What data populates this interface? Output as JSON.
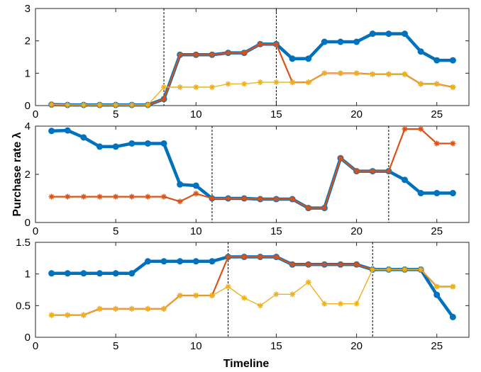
{
  "chart_data": {
    "type": "line",
    "ylabel": "Purchase rate λ",
    "xlabel": "Timeline",
    "panels": [
      {
        "xlim": [
          0,
          27
        ],
        "ylim": [
          0,
          3
        ],
        "xticks": [
          0,
          5,
          10,
          15,
          20,
          25
        ],
        "yticks": [
          0,
          1,
          2,
          3
        ],
        "ytick_labels": [
          "0",
          "1",
          "2",
          "3"
        ],
        "vlines": [
          8,
          15
        ],
        "series": [
          {
            "color": "#0072BD",
            "marker": "circle",
            "x": [
              1,
              2,
              3,
              4,
              5,
              6,
              7,
              8,
              9,
              10,
              11,
              12,
              13,
              14,
              15,
              16,
              17,
              18,
              19,
              20,
              21,
              22,
              23,
              24,
              25,
              26
            ],
            "y": [
              0.03,
              0.02,
              0.02,
              0.02,
              0.02,
              0.02,
              0.02,
              0.2,
              1.57,
              1.57,
              1.57,
              1.63,
              1.63,
              1.9,
              1.9,
              1.45,
              1.45,
              1.97,
              1.97,
              1.97,
              2.22,
              2.22,
              2.22,
              1.67,
              1.4,
              1.4
            ]
          },
          {
            "color": "#D95319",
            "marker": "asterisk",
            "x": [
              1,
              2,
              3,
              4,
              5,
              6,
              7,
              8,
              9,
              10,
              11,
              12,
              13,
              14,
              15,
              16,
              17,
              18,
              19,
              20,
              21,
              22,
              23,
              24,
              25,
              26
            ],
            "y": [
              0.03,
              0.02,
              0.02,
              0.02,
              0.02,
              0.02,
              0.02,
              0.2,
              1.57,
              1.57,
              1.57,
              1.63,
              1.63,
              1.9,
              1.9,
              0.72,
              0.72,
              1.0,
              1.0,
              1.0,
              0.97,
              0.97,
              0.97,
              0.67,
              0.67,
              0.57
            ]
          },
          {
            "color": "#EDB120",
            "marker": "asterisk",
            "x": [
              1,
              2,
              3,
              4,
              5,
              6,
              7,
              8,
              9,
              10,
              11,
              12,
              13,
              14,
              15,
              16,
              17,
              18,
              19,
              20,
              21,
              22,
              23,
              24,
              25,
              26
            ],
            "y": [
              0.03,
              0.02,
              0.02,
              0.02,
              0.02,
              0.02,
              0.02,
              0.57,
              0.57,
              0.57,
              0.57,
              0.67,
              0.67,
              0.72,
              0.72,
              0.72,
              0.72,
              1.0,
              1.0,
              1.0,
              0.97,
              0.97,
              0.97,
              0.67,
              0.67,
              0.57
            ]
          }
        ]
      },
      {
        "xlim": [
          0,
          27
        ],
        "ylim": [
          0,
          4
        ],
        "xticks": [
          0,
          5,
          10,
          15,
          20,
          25
        ],
        "yticks": [
          0,
          2,
          4
        ],
        "ytick_labels": [
          "0",
          "2",
          "4"
        ],
        "vlines": [
          11,
          22
        ],
        "series": [
          {
            "color": "#0072BD",
            "marker": "circle",
            "x": [
              1,
              2,
              3,
              4,
              5,
              6,
              7,
              8,
              9,
              10,
              11,
              12,
              13,
              14,
              15,
              16,
              17,
              18,
              19,
              20,
              21,
              22,
              23,
              24,
              25,
              26
            ],
            "y": [
              3.8,
              3.82,
              3.53,
              3.15,
              3.15,
              3.28,
              3.28,
              3.28,
              1.58,
              1.53,
              1.0,
              1.0,
              1.0,
              0.97,
              0.97,
              0.97,
              0.6,
              0.6,
              2.67,
              2.13,
              2.13,
              2.13,
              1.77,
              1.22,
              1.22,
              1.22
            ]
          },
          {
            "color": "#D95319",
            "marker": "asterisk",
            "x": [
              1,
              2,
              3,
              4,
              5,
              6,
              7,
              8,
              9,
              10,
              11,
              12,
              13,
              14,
              15,
              16,
              17,
              18,
              19,
              20,
              21,
              22,
              23,
              24,
              25,
              26
            ],
            "y": [
              1.07,
              1.07,
              1.07,
              1.07,
              1.07,
              1.07,
              1.07,
              1.07,
              0.87,
              1.2,
              1.0,
              1.0,
              1.0,
              0.97,
              0.97,
              0.97,
              0.6,
              0.6,
              2.67,
              2.13,
              2.13,
              2.13,
              3.88,
              3.88,
              3.28,
              3.28
            ]
          },
          {
            "color": "#EDB120",
            "marker": "asterisk",
            "x": [],
            "y": []
          }
        ]
      },
      {
        "xlim": [
          0,
          27
        ],
        "ylim": [
          0,
          1.5
        ],
        "xticks": [
          0,
          5,
          10,
          15,
          20,
          25
        ],
        "yticks": [
          0,
          0.5,
          1,
          1.5
        ],
        "ytick_labels": [
          "0",
          "0.5",
          "1",
          "1.5"
        ],
        "vlines": [
          12,
          21
        ],
        "series": [
          {
            "color": "#0072BD",
            "marker": "circle",
            "x": [
              1,
              2,
              3,
              4,
              5,
              6,
              7,
              8,
              9,
              10,
              11,
              12,
              13,
              14,
              15,
              16,
              17,
              18,
              19,
              20,
              21,
              22,
              23,
              24,
              25,
              26
            ],
            "y": [
              1.01,
              1.01,
              1.01,
              1.01,
              1.01,
              1.01,
              1.2,
              1.2,
              1.2,
              1.2,
              1.2,
              1.27,
              1.27,
              1.27,
              1.27,
              1.15,
              1.15,
              1.15,
              1.15,
              1.15,
              1.07,
              1.07,
              1.07,
              1.07,
              0.67,
              0.32
            ]
          },
          {
            "color": "#D95319",
            "marker": "asterisk",
            "x": [
              1,
              2,
              3,
              4,
              5,
              6,
              7,
              8,
              9,
              10,
              11,
              12,
              13,
              14,
              15,
              16,
              17,
              18,
              19,
              20,
              21,
              22,
              23,
              24,
              25,
              26
            ],
            "y": [
              0.35,
              0.35,
              0.35,
              0.45,
              0.45,
              0.45,
              0.45,
              0.45,
              0.66,
              0.66,
              0.66,
              1.27,
              1.27,
              1.27,
              1.27,
              1.15,
              1.15,
              1.15,
              1.15,
              1.15,
              1.07,
              1.07,
              1.07,
              1.07,
              0.8,
              0.8
            ]
          },
          {
            "color": "#EDB120",
            "marker": "asterisk",
            "x": [
              1,
              2,
              3,
              4,
              5,
              6,
              7,
              8,
              9,
              10,
              11,
              12,
              13,
              14,
              15,
              16,
              17,
              18,
              19,
              20,
              21,
              22,
              23,
              24,
              25,
              26
            ],
            "y": [
              0.35,
              0.35,
              0.35,
              0.45,
              0.45,
              0.45,
              0.45,
              0.45,
              0.66,
              0.66,
              0.66,
              0.8,
              0.62,
              0.5,
              0.68,
              0.68,
              0.87,
              0.53,
              0.53,
              0.53,
              1.07,
              1.07,
              1.07,
              1.07,
              0.8,
              0.8
            ]
          }
        ]
      }
    ]
  }
}
